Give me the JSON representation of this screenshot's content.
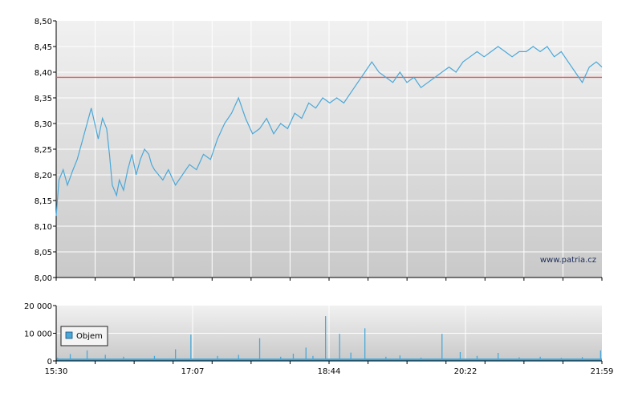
{
  "watermark": "www.patria.cz",
  "colors": {
    "price_line": "#4aa8d8",
    "reference_line": "#e05a5a",
    "volume_bars": "#4aa8d8",
    "legend_swatch": "#4aa8d8",
    "grid": "#ffffff",
    "bg_top": "#f1f1f1",
    "bg_bottom": "#c9c9c9"
  },
  "chart_data": [
    {
      "type": "line",
      "title": "",
      "xlabel": "",
      "ylabel": "",
      "x_ticks": [
        "15:30",
        "17:07",
        "18:44",
        "20:22",
        "21:59"
      ],
      "y_ticks": [
        "8,50",
        "8,45",
        "8,40",
        "8,35",
        "8,30",
        "8,25",
        "8,20",
        "8,15",
        "8,10",
        "8,05",
        "8,00"
      ],
      "ylim": [
        8.0,
        8.5
      ],
      "xlim": [
        "15:30",
        "21:59"
      ],
      "grid": true,
      "reference_line": 8.39,
      "series": [
        {
          "x": [
            "15:30",
            "15:32",
            "15:35",
            "15:38",
            "15:42",
            "15:45",
            "15:48",
            "15:52",
            "15:55",
            "16:00",
            "16:03",
            "16:06",
            "16:08",
            "16:10",
            "16:13",
            "16:15",
            "16:18",
            "16:21",
            "16:24",
            "16:27",
            "16:30",
            "16:33",
            "16:36",
            "16:38",
            "16:40",
            "16:43",
            "16:46",
            "16:50",
            "16:55",
            "17:00",
            "17:05",
            "17:10",
            "17:15",
            "17:20",
            "17:25",
            "17:30",
            "17:35",
            "17:40",
            "17:45",
            "17:50",
            "17:55",
            "18:00",
            "18:05",
            "18:10",
            "18:15",
            "18:20",
            "18:25",
            "18:30",
            "18:35",
            "18:40",
            "18:45",
            "18:50",
            "18:55",
            "19:00",
            "19:05",
            "19:10",
            "19:15",
            "19:20",
            "19:25",
            "19:30",
            "19:35",
            "19:40",
            "19:45",
            "19:50",
            "19:55",
            "20:00",
            "20:05",
            "20:10",
            "20:15",
            "20:20",
            "20:25",
            "20:30",
            "20:35",
            "20:40",
            "20:45",
            "20:50",
            "20:55",
            "21:00",
            "21:05",
            "21:10",
            "21:15",
            "21:20",
            "21:25",
            "21:30",
            "21:35",
            "21:40",
            "21:45",
            "21:50",
            "21:55",
            "21:59"
          ],
          "values": [
            8.12,
            8.19,
            8.21,
            8.18,
            8.21,
            8.23,
            8.26,
            8.3,
            8.33,
            8.27,
            8.31,
            8.29,
            8.24,
            8.18,
            8.16,
            8.19,
            8.17,
            8.21,
            8.24,
            8.2,
            8.23,
            8.25,
            8.24,
            8.22,
            8.21,
            8.2,
            8.19,
            8.21,
            8.18,
            8.2,
            8.22,
            8.21,
            8.24,
            8.23,
            8.27,
            8.3,
            8.32,
            8.35,
            8.31,
            8.28,
            8.29,
            8.31,
            8.28,
            8.3,
            8.29,
            8.32,
            8.31,
            8.34,
            8.33,
            8.35,
            8.34,
            8.35,
            8.34,
            8.36,
            8.38,
            8.4,
            8.42,
            8.4,
            8.39,
            8.38,
            8.4,
            8.38,
            8.39,
            8.37,
            8.38,
            8.39,
            8.4,
            8.41,
            8.4,
            8.42,
            8.43,
            8.44,
            8.43,
            8.44,
            8.45,
            8.44,
            8.43,
            8.44,
            8.44,
            8.45,
            8.44,
            8.45,
            8.43,
            8.44,
            8.42,
            8.4,
            8.38,
            8.41,
            8.42,
            8.41
          ]
        }
      ]
    },
    {
      "type": "bar",
      "title": "",
      "xlabel": "",
      "ylabel": "",
      "x_ticks": [
        "15:30",
        "17:07",
        "18:44",
        "20:22",
        "21:59"
      ],
      "y_ticks": [
        "20 000",
        "10 000",
        "0"
      ],
      "ylim": [
        0,
        20000
      ],
      "legend": {
        "entries": [
          "Objem"
        ],
        "placement": "left"
      },
      "series": [
        {
          "name": "Objem",
          "x": [
            "15:31",
            "15:40",
            "15:52",
            "16:05",
            "16:18",
            "16:40",
            "16:55",
            "17:06",
            "17:25",
            "17:40",
            "17:55",
            "18:10",
            "18:19",
            "18:28",
            "18:33",
            "18:42",
            "18:52",
            "19:00",
            "19:10",
            "19:25",
            "19:35",
            "19:50",
            "20:05",
            "20:18",
            "20:30",
            "20:45",
            "21:00",
            "21:15",
            "21:30",
            "21:45",
            "21:58"
          ],
          "values": [
            1200,
            2500,
            3800,
            2200,
            1500,
            1800,
            4200,
            9500,
            1800,
            2200,
            8200,
            1500,
            2600,
            4800,
            1800,
            16200,
            9800,
            3000,
            11800,
            1500,
            2000,
            1200,
            9800,
            3200,
            1800,
            2900,
            1300,
            1500,
            1100,
            1400,
            3800
          ]
        }
      ]
    }
  ]
}
